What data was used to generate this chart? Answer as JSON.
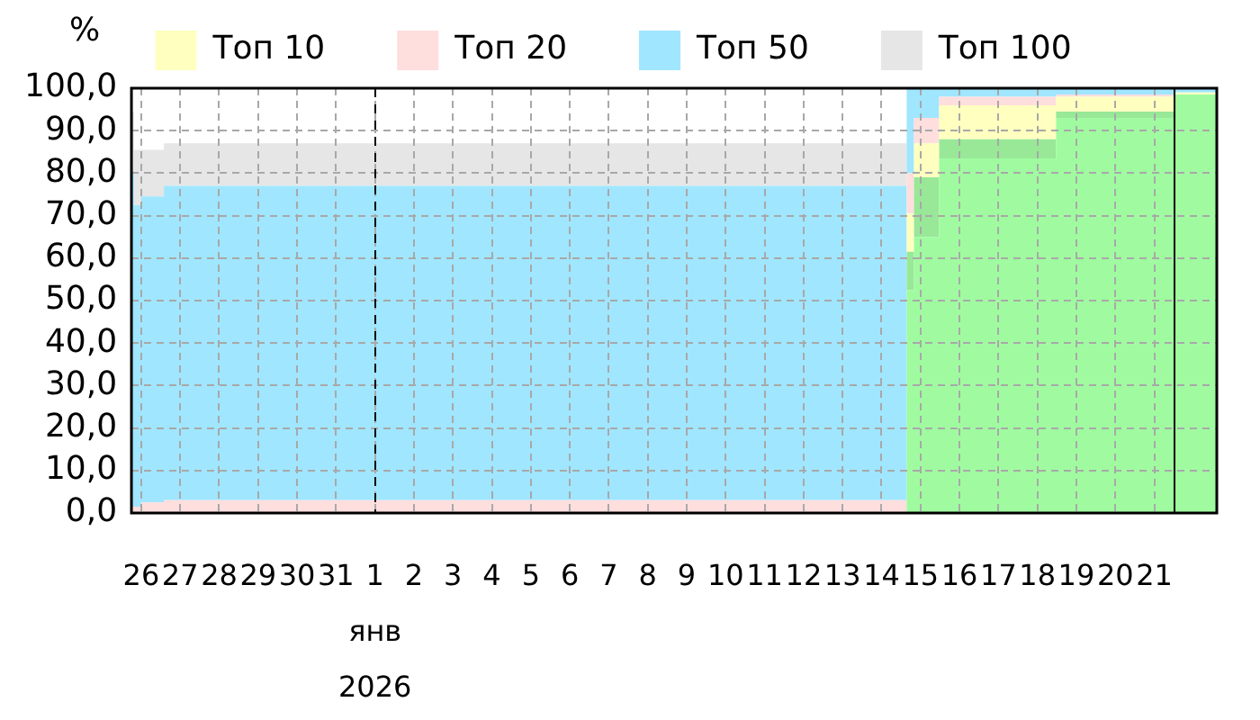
{
  "chart_data": {
    "type": "area",
    "stacked": true,
    "ylabel": "%",
    "legend": "top",
    "grid": true,
    "x": [
      "2025-12-25T18:00",
      "2025-12-25T19:30",
      "2025-12-25T19:30",
      "2025-12-26T00:00",
      "2025-12-26T00:00",
      "2025-12-26T14:00",
      "2025-12-26T14:00",
      "2026-01-14T15:30",
      "2026-01-14T15:30",
      "2026-01-14T20:00",
      "2026-01-14T20:00",
      "2026-01-15T11:30",
      "2026-01-15T11:30",
      "2026-01-18T11:30",
      "2026-01-18T11:30",
      "2026-01-21T12:00",
      "2026-01-21T12:00",
      "2026-01-22T14:30"
    ],
    "series": [
      {
        "color": "#a0fba0",
        "values": [
          null,
          null,
          null,
          null,
          null,
          null,
          null,
          null,
          52.5,
          52.5,
          65,
          65,
          83.5,
          83.5,
          93,
          93,
          98.5,
          98.5
        ]
      },
      {
        "color": "#98e898",
        "values": [
          null,
          null,
          null,
          null,
          null,
          null,
          null,
          null,
          9,
          9,
          14,
          14,
          4.5,
          4.5,
          1.5,
          1.5,
          null,
          null
        ]
      },
      {
        "name": "Топ 10",
        "color": "#ffffc0",
        "values": [
          null,
          null,
          null,
          null,
          null,
          null,
          null,
          null,
          9,
          9,
          8,
          8,
          8,
          8,
          3.5,
          3.5,
          0.5,
          0.5
        ]
      },
      {
        "name": "Топ 20",
        "color": "#ffdede",
        "values": [
          1.5,
          1.5,
          1.5,
          1.5,
          2.5,
          2.5,
          3,
          3,
          9.5,
          9.5,
          6,
          6,
          2,
          2,
          0.5,
          0.5,
          null,
          null
        ]
      },
      {
        "name": "Топ 50",
        "color": "#a0e6ff",
        "values": [
          78.5,
          78.5,
          71,
          71,
          72,
          72,
          74,
          74,
          20,
          20,
          7,
          7,
          2,
          2,
          1.5,
          1.5,
          1,
          1
        ]
      },
      {
        "name": "Топ 100",
        "color": "#e6e6e6",
        "values": [
          14.5,
          14.5,
          13,
          13,
          11,
          11,
          10,
          10,
          null,
          null,
          null,
          null,
          null,
          null,
          null,
          null,
          null,
          null
        ]
      }
    ],
    "xlim": [
      "2025-12-25T18:00",
      "2026-01-22T14:30"
    ],
    "xticks": [
      {
        "value": "2025-12-26",
        "label": "26"
      },
      {
        "value": "2025-12-27",
        "label": "27"
      },
      {
        "value": "2025-12-28",
        "label": "28"
      },
      {
        "value": "2025-12-29",
        "label": "29"
      },
      {
        "value": "2025-12-30",
        "label": "30"
      },
      {
        "value": "2025-12-31",
        "label": "31"
      },
      {
        "value": "2026-01-01",
        "label": "1\nянв\n2026"
      },
      {
        "value": "2026-01-02",
        "label": "2"
      },
      {
        "value": "2026-01-03",
        "label": "3"
      },
      {
        "value": "2026-01-04",
        "label": "4"
      },
      {
        "value": "2026-01-05",
        "label": "5"
      },
      {
        "value": "2026-01-06",
        "label": "6"
      },
      {
        "value": "2026-01-07",
        "label": "7"
      },
      {
        "value": "2026-01-08",
        "label": "8"
      },
      {
        "value": "2026-01-09",
        "label": "9"
      },
      {
        "value": "2026-01-10",
        "label": "10"
      },
      {
        "value": "2026-01-11",
        "label": "11"
      },
      {
        "value": "2026-01-12",
        "label": "12"
      },
      {
        "value": "2026-01-13",
        "label": "13"
      },
      {
        "value": "2026-01-14",
        "label": "14"
      },
      {
        "value": "2026-01-15",
        "label": "15"
      },
      {
        "value": "2026-01-16",
        "label": "16"
      },
      {
        "value": "2026-01-17",
        "label": "17"
      },
      {
        "value": "2026-01-18",
        "label": "18"
      },
      {
        "value": "2026-01-19",
        "label": "19"
      },
      {
        "value": "2026-01-20",
        "label": "20"
      },
      {
        "value": "2026-01-21",
        "label": "21"
      }
    ],
    "ylim": [
      0,
      100
    ],
    "yticks": [
      {
        "value": 0,
        "label": "0,0"
      },
      {
        "value": 10,
        "label": "10,0"
      },
      {
        "value": 20,
        "label": "20,0"
      },
      {
        "value": 30,
        "label": "30,0"
      },
      {
        "value": 40,
        "label": "40,0"
      },
      {
        "value": 50,
        "label": "50,0"
      },
      {
        "value": 60,
        "label": "60,0"
      },
      {
        "value": 70,
        "label": "70,0"
      },
      {
        "value": 80,
        "label": "80,0"
      },
      {
        "value": 90,
        "label": "90,0"
      },
      {
        "value": 100,
        "label": "100,0"
      }
    ],
    "ref_lines": [
      {
        "axis": "x",
        "value": "2026-01-01",
        "color": "#000000",
        "line_style": "dashed"
      },
      {
        "axis": "x",
        "value": "2026-01-21T12:00",
        "color": "#000000",
        "line_style": "solid"
      }
    ]
  }
}
